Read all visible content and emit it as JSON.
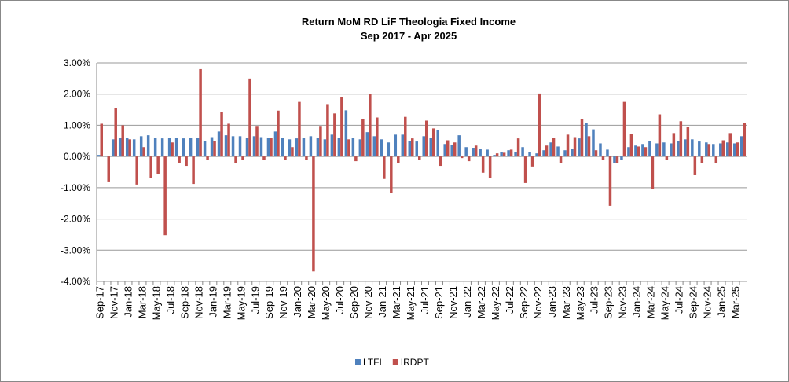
{
  "chart_data": {
    "type": "bar",
    "title": "Return MoM RD LiF Theologia Fixed Income",
    "subtitle": "Sep 2017 - Apr 2025",
    "categories": [
      "Sep-17",
      null,
      "Nov-17",
      null,
      "Jan-18",
      null,
      "Mar-18",
      null,
      "May-18",
      null,
      "Jul-18",
      null,
      "Sep-18",
      null,
      "Nov-18",
      null,
      "Jan-19",
      null,
      "Mar-19",
      null,
      "May-19",
      null,
      "Jul-19",
      null,
      "Sep-19",
      null,
      "Nov-19",
      null,
      "Jan-20",
      null,
      "Mar-20",
      null,
      "May-20",
      null,
      "Jul-20",
      null,
      "Sep-20",
      null,
      "Nov-20",
      null,
      "Jan-21",
      null,
      "Mar-21",
      null,
      "May-21",
      null,
      "Jul-21",
      null,
      "Sep-21",
      null,
      "Nov-21",
      null,
      "Jan-22",
      null,
      "Mar-22",
      null,
      "May-22",
      null,
      "Jul-22",
      null,
      "Sep-22",
      null,
      "Nov-22",
      null,
      "Jan-23",
      null,
      "Mar-23",
      null,
      "May-23",
      null,
      "Jul-23",
      null,
      "Sep-23",
      null,
      "Nov-23",
      null,
      "Jan-24",
      null,
      "Mar-24",
      null,
      "May-24",
      null,
      "Jul-24",
      null,
      "Sep-24",
      null,
      "Nov-24",
      null,
      "Jan-25",
      null,
      "Mar-25",
      null
    ],
    "series": [
      {
        "name": "LTFI",
        "color": "#4f81bd",
        "values": [
          0.05,
          0.02,
          0.55,
          0.6,
          0.6,
          0.55,
          0.65,
          0.68,
          0.6,
          0.58,
          0.6,
          0.6,
          0.58,
          0.6,
          0.6,
          0.5,
          0.62,
          0.8,
          0.68,
          0.65,
          0.65,
          0.6,
          0.65,
          0.62,
          0.6,
          0.8,
          0.6,
          0.55,
          0.58,
          0.6,
          0.65,
          0.6,
          0.55,
          0.7,
          0.6,
          1.48,
          0.6,
          0.55,
          0.78,
          0.65,
          0.55,
          0.45,
          0.7,
          0.7,
          0.5,
          0.48,
          0.65,
          0.6,
          0.85,
          0.4,
          0.38,
          0.68,
          0.3,
          0.28,
          0.25,
          0.22,
          0.05,
          0.15,
          0.2,
          0.15,
          0.3,
          0.15,
          0.1,
          0.2,
          0.45,
          0.32,
          0.2,
          0.25,
          0.58,
          1.08,
          0.87,
          0.42,
          0.22,
          -0.2,
          -0.1,
          0.3,
          0.35,
          0.4,
          0.5,
          0.42,
          0.45,
          0.42,
          0.5,
          0.55,
          0.55,
          0.48,
          0.45,
          0.4,
          0.42,
          0.45,
          0.42,
          0.65
        ]
      },
      {
        "name": "IRDPT",
        "color": "#c0504d",
        "values": [
          1.05,
          -0.8,
          1.55,
          1.0,
          0.55,
          -0.9,
          0.3,
          -0.7,
          -0.55,
          -2.52,
          0.45,
          -0.2,
          -0.3,
          -0.88,
          2.8,
          -0.1,
          0.5,
          1.42,
          1.05,
          -0.2,
          -0.1,
          2.5,
          0.98,
          -0.1,
          0.6,
          1.47,
          -0.1,
          0.3,
          1.75,
          -0.1,
          -3.68,
          0.98,
          1.68,
          1.38,
          1.9,
          0.55,
          -0.15,
          1.2,
          2.0,
          1.25,
          -0.72,
          -1.18,
          -0.22,
          1.27,
          0.58,
          -0.1,
          1.15,
          0.9,
          -0.3,
          0.52,
          0.45,
          -0.05,
          -0.15,
          0.35,
          -0.52,
          -0.7,
          0.1,
          0.12,
          0.22,
          0.58,
          -0.85,
          -0.32,
          2.02,
          0.35,
          0.6,
          -0.2,
          0.7,
          0.62,
          1.2,
          0.65,
          0.2,
          -0.12,
          -1.58,
          -0.2,
          1.75,
          0.72,
          0.32,
          0.3,
          -1.05,
          1.35,
          -0.12,
          0.75,
          1.13,
          0.95,
          -0.6,
          -0.2,
          0.4,
          -0.22,
          0.52,
          0.75,
          0.45,
          1.08
        ]
      }
    ],
    "ylim": [
      -4,
      3
    ],
    "yticks": [
      {
        "value": -4,
        "label": "-4.00%"
      },
      {
        "value": -3,
        "label": "-3.00%"
      },
      {
        "value": -2,
        "label": "-2.00%"
      },
      {
        "value": -1,
        "label": "-1.00%"
      },
      {
        "value": 0,
        "label": "0.00%"
      },
      {
        "value": 1,
        "label": "1.00%"
      },
      {
        "value": 2,
        "label": "2.00%"
      },
      {
        "value": 3,
        "label": "3.00%"
      }
    ],
    "grid": true,
    "legend": "bottom"
  }
}
